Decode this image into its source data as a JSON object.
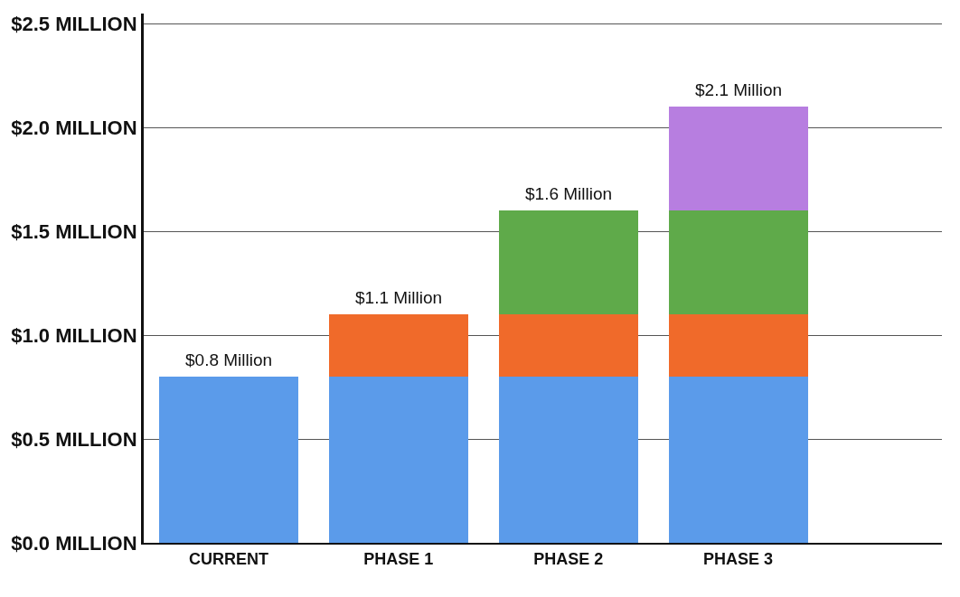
{
  "chart_data": {
    "type": "bar",
    "stacked": true,
    "categories": [
      "CURRENT",
      "PHASE 1",
      "PHASE 2",
      "PHASE 3"
    ],
    "series": [
      {
        "color": "#5b9bea",
        "values": [
          0.8,
          0.8,
          0.8,
          0.8
        ]
      },
      {
        "color": "#f06a2a",
        "values": [
          null,
          0.3,
          0.3,
          0.3
        ]
      },
      {
        "color": "#5faa4a",
        "values": [
          null,
          null,
          0.5,
          0.5
        ]
      },
      {
        "color": "#b77ee0",
        "values": [
          null,
          null,
          null,
          0.5
        ]
      }
    ],
    "totals": [
      "$0.8 Million",
      "$1.1 Million",
      "$1.6 Million",
      "$2.1 Million"
    ],
    "ylim": [
      0,
      2.55
    ],
    "yticks": [
      {
        "value": 0,
        "label": "$0.0 MILLION"
      },
      {
        "value": 0.5,
        "label": "$0.5 MILLION"
      },
      {
        "value": 1.0,
        "label": "$1.0 MILLION"
      },
      {
        "value": 1.5,
        "label": "$1.5 MILLION"
      },
      {
        "value": 2.0,
        "label": "$2.0 MILLION"
      },
      {
        "value": 2.5,
        "label": "$2.5 MILLION"
      }
    ],
    "grid": "y"
  }
}
